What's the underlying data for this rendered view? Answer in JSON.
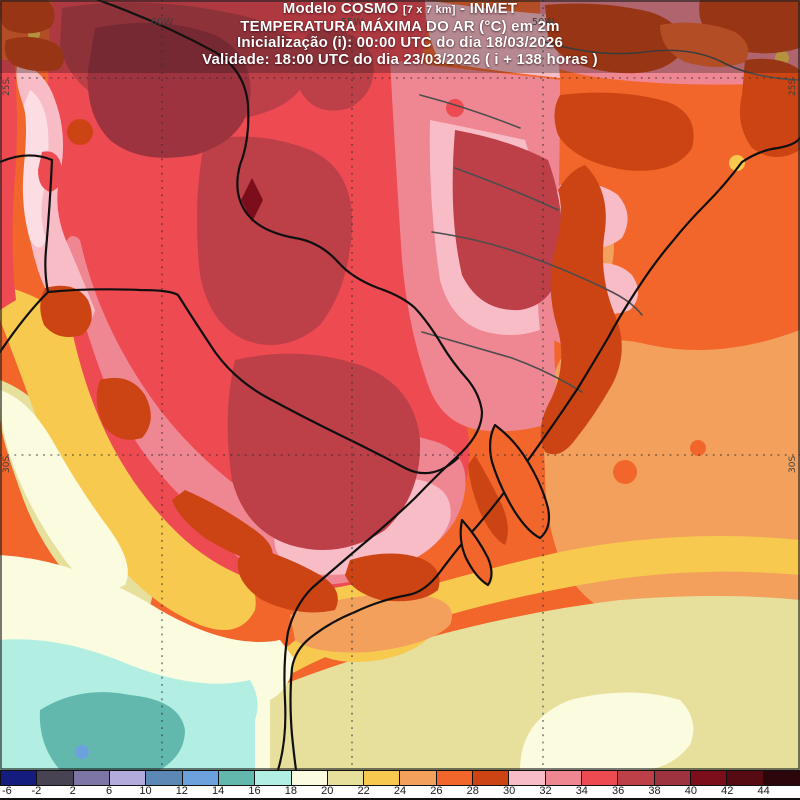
{
  "header": {
    "line1_model": "Modelo COSMO",
    "line1_res": "[7 x 7 km]",
    "line1_org": "- INMET",
    "line2": "TEMPERATURA MÁXIMA DO AR (°C) em 2m",
    "line3": "Inicialização (i): 00:00 UTC do dia 18/03/2026",
    "line4": "Validade: 18:00 UTC do dia 23/03/2026 ( i + 138 horas )"
  },
  "map": {
    "grid": {
      "top": [
        "60W",
        "55W",
        "50W"
      ],
      "lat_left": [
        "25S",
        "30S"
      ],
      "lat_right": [
        "25S",
        "30S"
      ]
    }
  },
  "palette": {
    "m6": "#141c7e",
    "m2": "#474352",
    "p2": "#7d76a4",
    "p6": "#b3abdc",
    "p10": "#5c88b5",
    "p12": "#6ba2de",
    "p14": "#63b8ae",
    "p16": "#b2efe2",
    "p18": "#fbfbdf",
    "p20": "#e7df9c",
    "p22": "#f7c94f",
    "p24": "#f2a05c",
    "p26": "#f2662b",
    "p28": "#cc4413",
    "p30": "#f8bcc6",
    "p30l": "#fbdde3",
    "p32": "#ef8793",
    "p34": "#ee4a52",
    "p36": "#bd3f48",
    "p38": "#9e3340",
    "p40": "#7c0d1b",
    "p42": "#560a12",
    "p44": "#2c060b",
    "border": "#101010",
    "state_border": "#4d4d4d",
    "grid_dots": "#2f2f2f",
    "grid_label": "#3f3f3f"
  },
  "colorbar": {
    "unit": "°C",
    "stops": [
      {
        "value": "-6",
        "color": "#141c7e"
      },
      {
        "value": "-2",
        "color": "#474352"
      },
      {
        "value": "2",
        "color": "#7d76a4"
      },
      {
        "value": "6",
        "color": "#b3abdc"
      },
      {
        "value": "10",
        "color": "#5c88b5"
      },
      {
        "value": "12",
        "color": "#6ba2de"
      },
      {
        "value": "14",
        "color": "#63b8ae"
      },
      {
        "value": "16",
        "color": "#b2efe2"
      },
      {
        "value": "18",
        "color": "#fbfbdf"
      },
      {
        "value": "20",
        "color": "#e7df9c"
      },
      {
        "value": "22",
        "color": "#f7c94f"
      },
      {
        "value": "24",
        "color": "#f2a05c"
      },
      {
        "value": "26",
        "color": "#f2662b"
      },
      {
        "value": "28",
        "color": "#cc4413"
      },
      {
        "value": "30",
        "color": "#f8bcc6"
      },
      {
        "value": "32",
        "color": "#ef8793"
      },
      {
        "value": "34",
        "color": "#ee4a52"
      },
      {
        "value": "36",
        "color": "#bd3f48"
      },
      {
        "value": "38",
        "color": "#9e3340"
      },
      {
        "value": "40",
        "color": "#7c0d1b"
      },
      {
        "value": "42",
        "color": "#560a12"
      },
      {
        "value": "44",
        "color": "#2c060b"
      }
    ]
  },
  "chart_data": {
    "type": "heatmap",
    "title": "TEMPERATURA MÁXIMA DO AR (°C) em 2m",
    "unit": "°C",
    "scale_values": [
      -6,
      -2,
      2,
      6,
      10,
      12,
      14,
      16,
      18,
      20,
      22,
      24,
      26,
      28,
      30,
      32,
      34,
      36,
      38,
      40,
      42,
      44
    ],
    "scale_colors": [
      "#141c7e",
      "#474352",
      "#7d76a4",
      "#b3abdc",
      "#5c88b5",
      "#6ba2de",
      "#63b8ae",
      "#b2efe2",
      "#fbfbdf",
      "#e7df9c",
      "#f7c94f",
      "#f2a05c",
      "#f2662b",
      "#cc4413",
      "#f8bcc6",
      "#ef8793",
      "#ee4a52",
      "#bd3f48",
      "#9e3340",
      "#7c0d1b",
      "#560a12",
      "#2c060b"
    ],
    "grid_longitudes": [
      "60W",
      "55W",
      "50W"
    ],
    "grid_latitudes": [
      "25S",
      "30S"
    ]
  }
}
